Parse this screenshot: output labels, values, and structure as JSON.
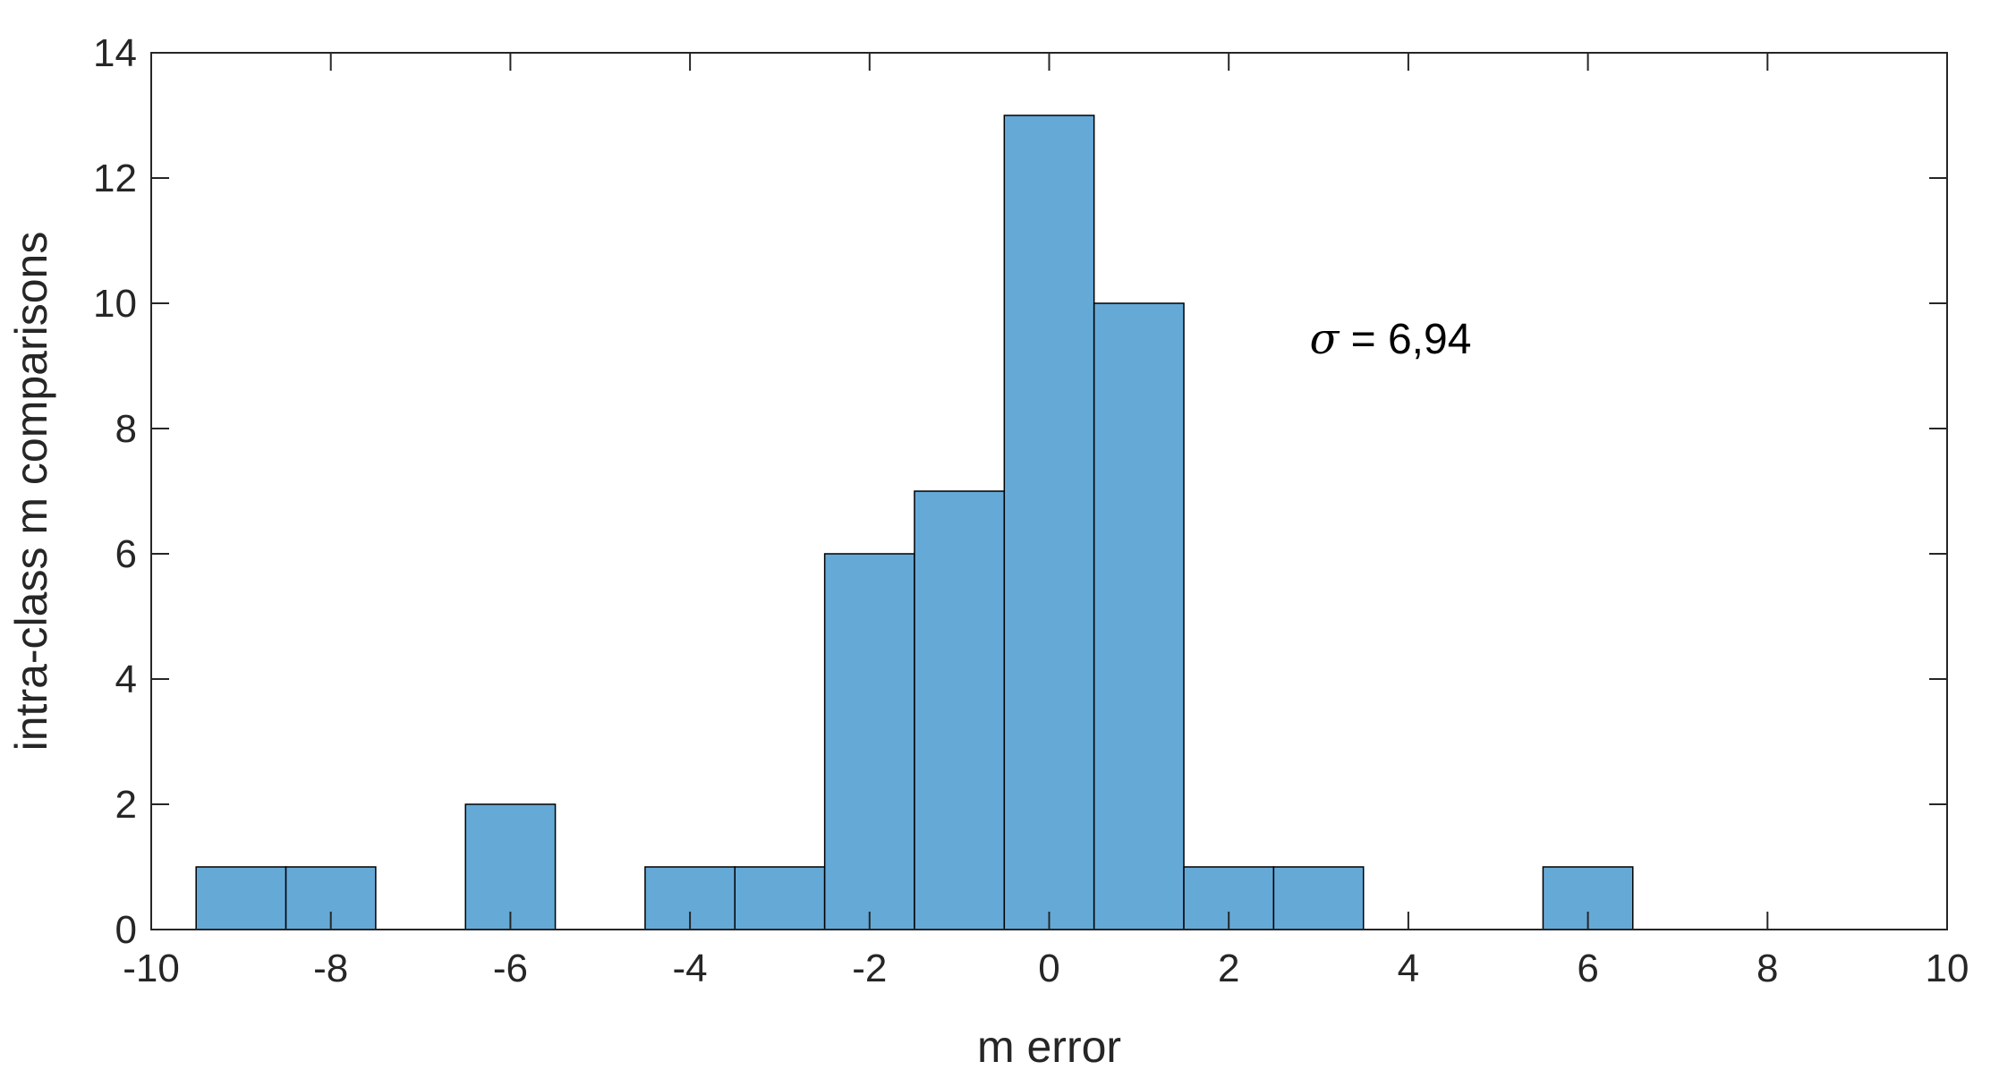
{
  "chart_data": {
    "type": "bar",
    "subtype": "histogram",
    "xlabel": "m error",
    "ylabel": "intra-class m comparisons",
    "xlim": [
      -10,
      10
    ],
    "ylim": [
      0,
      14
    ],
    "x_ticks": [
      -10,
      -8,
      -6,
      -4,
      -2,
      0,
      2,
      4,
      6,
      8,
      10
    ],
    "y_ticks": [
      0,
      2,
      4,
      6,
      8,
      10,
      12,
      14
    ],
    "bin_width": 1,
    "bins": [
      {
        "center": -9,
        "count": 1
      },
      {
        "center": -8,
        "count": 1
      },
      {
        "center": -7,
        "count": 0
      },
      {
        "center": -6,
        "count": 2
      },
      {
        "center": -5,
        "count": 0
      },
      {
        "center": -4,
        "count": 1
      },
      {
        "center": -3,
        "count": 1
      },
      {
        "center": -2,
        "count": 6
      },
      {
        "center": -1,
        "count": 7
      },
      {
        "center": 0,
        "count": 13
      },
      {
        "center": 1,
        "count": 10
      },
      {
        "center": 2,
        "count": 1
      },
      {
        "center": 3,
        "count": 1
      },
      {
        "center": 4,
        "count": 0
      },
      {
        "center": 5,
        "count": 0
      },
      {
        "center": 6,
        "count": 1
      }
    ],
    "annotation": {
      "symbol": "σ",
      "text": " = 6,94",
      "x": 2.9,
      "y": 9.2
    },
    "bar_color": "#65a9d7",
    "bar_edge_color": "#000000",
    "axis_color": "#262626",
    "grid": false
  }
}
